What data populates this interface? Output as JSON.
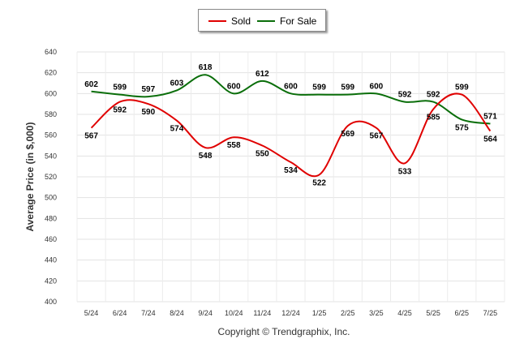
{
  "chart_data": {
    "type": "line",
    "title": "",
    "xlabel": "",
    "ylabel": "Average Price (in $,000)",
    "ylim": [
      400,
      640
    ],
    "yticks": [
      400,
      420,
      440,
      460,
      480,
      500,
      520,
      540,
      560,
      580,
      600,
      620,
      640
    ],
    "categories": [
      "5/24",
      "6/24",
      "7/24",
      "8/24",
      "9/24",
      "10/24",
      "11/24",
      "12/24",
      "1/25",
      "2/25",
      "3/25",
      "4/25",
      "5/25",
      "6/25",
      "7/25"
    ],
    "grid": true,
    "legend_position": "top-center",
    "series": [
      {
        "name": "Sold",
        "color": "#e00000",
        "values": [
          567,
          592,
          590,
          574,
          548,
          558,
          550,
          534,
          522,
          569,
          567,
          533,
          585,
          599,
          564
        ]
      },
      {
        "name": "For Sale",
        "color": "#0a6e0a",
        "values": [
          602,
          599,
          597,
          603,
          618,
          600,
          612,
          600,
          599,
          599,
          600,
          592,
          592,
          575,
          571
        ]
      }
    ]
  },
  "footer": {
    "copyright": "Copyright © Trendgraphix, Inc."
  }
}
